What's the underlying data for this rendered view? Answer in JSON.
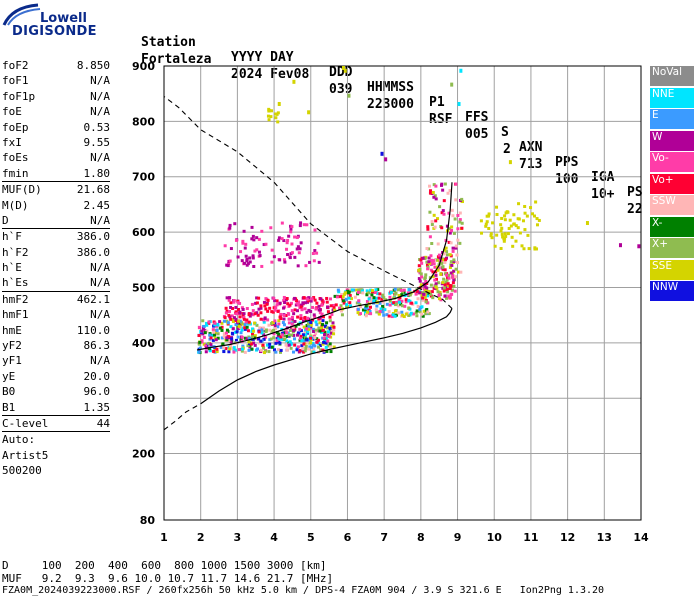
{
  "logo": {
    "top": "Lowell",
    "bottom": "DIGISONDE"
  },
  "header": {
    "station_label": "Station",
    "station": "Fortaleza",
    "date_label": "YYYY DAY",
    "date": "2024 Fev08",
    "ddd_label": "DDD",
    "ddd": "039",
    "time_label": "HHMMSS",
    "time": "223000",
    "p1_label": "P1",
    "p1": "RSF",
    "ffs_label": "FFS",
    "ffs": "005",
    "s_label": "S",
    "s": "2",
    "axn_label": "AXN",
    "axn": "713",
    "pps_label": "PPS",
    "pps": "100",
    "iga_label": "IGA",
    "iga": "10+",
    "ps_label": "PS",
    "ps": "22"
  },
  "params": [
    {
      "name": "foF2",
      "value": "8.850"
    },
    {
      "name": "foF1",
      "value": "N/A"
    },
    {
      "name": "foF1p",
      "value": "N/A"
    },
    {
      "name": "foE",
      "value": "N/A"
    },
    {
      "name": "foEp",
      "value": "0.53"
    },
    {
      "name": "fxI",
      "value": "9.55"
    },
    {
      "name": "foEs",
      "value": "N/A"
    },
    {
      "name": "fmin",
      "value": "1.80",
      "sep": true
    },
    {
      "name": "MUF(D)",
      "value": "21.68"
    },
    {
      "name": "M(D)",
      "value": "2.45"
    },
    {
      "name": "D",
      "value": "N/A",
      "sep": true
    },
    {
      "name": "h`F",
      "value": "386.0"
    },
    {
      "name": "h`F2",
      "value": "386.0"
    },
    {
      "name": "h`E",
      "value": "N/A"
    },
    {
      "name": "h`Es",
      "value": "N/A",
      "sep": true
    },
    {
      "name": "hmF2",
      "value": "462.1"
    },
    {
      "name": "hmF1",
      "value": "N/A"
    },
    {
      "name": "hmE",
      "value": "110.0"
    },
    {
      "name": "yF2",
      "value": "86.3"
    },
    {
      "name": "yF1",
      "value": "N/A"
    },
    {
      "name": "yE",
      "value": "20.0"
    },
    {
      "name": "B0",
      "value": "96.0"
    },
    {
      "name": "B1",
      "value": "1.35",
      "sep": true
    },
    {
      "name": "C-level",
      "value": "44",
      "sep": true
    },
    {
      "name": "Auto:",
      "value": ""
    },
    {
      "name": "Artist5",
      "value": ""
    },
    {
      "name": "500200",
      "value": ""
    }
  ],
  "legend": [
    {
      "label": "NoVal",
      "color": "#8c8c8c",
      "text_color": "#ffffff"
    },
    {
      "label": "NNE",
      "color": "#00e5ff",
      "text_color": "#ffffff"
    },
    {
      "label": "E",
      "color": "#3b9bff",
      "text_color": "#ffffff"
    },
    {
      "label": "W",
      "color": "#b00097",
      "text_color": "#ffffff"
    },
    {
      "label": "Vo-",
      "color": "#ff3ca8",
      "text_color": "#ffffff"
    },
    {
      "label": "Vo+",
      "color": "#ff0033",
      "text_color": "#ffffff"
    },
    {
      "label": "SSW",
      "color": "#ffb6b6",
      "text_color": "#ffffff"
    },
    {
      "label": "X-",
      "color": "#008000",
      "text_color": "#ffffff"
    },
    {
      "label": "X+",
      "color": "#8fbc50",
      "text_color": "#ffffff"
    },
    {
      "label": "SSE",
      "color": "#d4d400",
      "text_color": "#ffffff"
    },
    {
      "label": "NNW",
      "color": "#1010e0",
      "text_color": "#ffffff"
    }
  ],
  "footer": {
    "d_row": "D     100  200  400  600  800 1000 1500 3000 [km]",
    "muf_row": "MUF   9.2  9.3  9.6 10.0 10.7 11.7 14.6 21.7 [MHz]",
    "info_row": "FZA0M_2024039223000.RSF / 260fx256h 50 kHz 5.0 km / DPS-4 FZA0M 904 / 3.9 S 321.6 E   Ion2Png 1.3.20"
  },
  "chart_data": {
    "type": "scatter",
    "xlim": [
      1,
      14
    ],
    "ylim": [
      80,
      900
    ],
    "x_ticks": [
      1,
      2,
      3,
      4,
      5,
      6,
      7,
      8,
      9,
      10,
      11,
      12,
      13,
      14
    ],
    "y_ticks": [
      80,
      200,
      300,
      400,
      500,
      600,
      700,
      800,
      900
    ],
    "x_tick_labels": [
      "1",
      "2",
      "3",
      "4",
      "5",
      "6",
      "7",
      "8",
      "9",
      "10",
      "11",
      "12",
      "13",
      "14"
    ],
    "y_tick_labels": [
      "80",
      "200",
      "300",
      "400",
      "500",
      "600",
      "700",
      "800",
      "900"
    ],
    "grid": true,
    "trace_curve": [
      [
        1.9,
        387
      ],
      [
        2.3,
        392
      ],
      [
        2.8,
        397
      ],
      [
        3.3,
        405
      ],
      [
        3.8,
        414
      ],
      [
        4.3,
        425
      ],
      [
        4.8,
        437
      ],
      [
        5.3,
        448
      ],
      [
        5.8,
        460
      ],
      [
        6.3,
        467
      ],
      [
        6.8,
        473
      ],
      [
        7.3,
        480
      ],
      [
        7.8,
        492
      ],
      [
        8.2,
        510
      ],
      [
        8.5,
        540
      ],
      [
        8.7,
        585
      ],
      [
        8.8,
        640
      ],
      [
        8.85,
        690
      ]
    ],
    "profile_curve": [
      [
        2.0,
        290
      ],
      [
        2.5,
        313
      ],
      [
        3.0,
        333
      ],
      [
        3.5,
        348
      ],
      [
        4.0,
        360
      ],
      [
        4.5,
        370
      ],
      [
        5.0,
        380
      ],
      [
        5.5,
        388
      ],
      [
        6.0,
        395
      ],
      [
        6.5,
        402
      ],
      [
        7.0,
        409
      ],
      [
        7.5,
        417
      ],
      [
        8.0,
        427
      ],
      [
        8.4,
        437
      ],
      [
        8.7,
        447
      ],
      [
        8.8,
        455
      ],
      [
        8.85,
        462
      ]
    ],
    "extrapolation_bottom": [
      [
        1.0,
        243
      ],
      [
        1.3,
        258
      ],
      [
        1.6,
        275
      ],
      [
        2.0,
        290
      ]
    ],
    "extrapolation_top": [
      [
        8.85,
        462
      ],
      [
        8.6,
        478
      ],
      [
        8.0,
        497
      ],
      [
        7.0,
        530
      ],
      [
        6.0,
        565
      ],
      [
        5.0,
        615
      ],
      [
        4.0,
        690
      ],
      [
        3.0,
        745
      ],
      [
        2.0,
        785
      ],
      [
        1.4,
        825
      ],
      [
        1.0,
        845
      ]
    ],
    "echo_clusters": [
      {
        "x": [
          1.9,
          5.6
        ],
        "y": [
          385,
          445
        ],
        "n": 520,
        "colors": [
          "#00e5ff",
          "#3b9bff",
          "#ff0033",
          "#ff3ca8",
          "#008000",
          "#8fbc50",
          "#ffb6b6",
          "#d4d400",
          "#b00097",
          "#1010e0"
        ]
      },
      {
        "x": [
          2.6,
          5.6
        ],
        "y": [
          445,
          485
        ],
        "n": 200,
        "colors": [
          "#ff0033",
          "#ff3ca8",
          "#b00097"
        ]
      },
      {
        "x": [
          5.6,
          8.2
        ],
        "y": [
          450,
          500
        ],
        "n": 260,
        "colors": [
          "#00e5ff",
          "#3b9bff",
          "#ff0033",
          "#ffb6b6",
          "#8fbc50",
          "#d4d400",
          "#008000",
          "#ff3ca8"
        ]
      },
      {
        "x": [
          7.9,
          8.9
        ],
        "y": [
          480,
          560
        ],
        "n": 150,
        "colors": [
          "#ff0033",
          "#ff3ca8",
          "#b00097",
          "#d4d400",
          "#8fbc50"
        ]
      },
      {
        "x": [
          8.1,
          9.1
        ],
        "y": [
          520,
          690
        ],
        "n": 110,
        "colors": [
          "#b00097",
          "#ff3ca8",
          "#ff0033",
          "#ffb6b6",
          "#d4d400",
          "#8fbc50"
        ]
      },
      {
        "x": [
          2.6,
          5.2
        ],
        "y": [
          540,
          620
        ],
        "n": 90,
        "colors": [
          "#b00097",
          "#ff3ca8"
        ]
      },
      {
        "x": [
          9.8,
          11.2
        ],
        "y": [
          570,
          665
        ],
        "n": 45,
        "colors": [
          "#d4d400"
        ]
      },
      {
        "x": [
          9.6,
          10.8
        ],
        "y": [
          590,
          640
        ],
        "n": 25,
        "colors": [
          "#d4d400"
        ]
      },
      {
        "x": [
          3.8,
          4.1
        ],
        "y": [
          800,
          825
        ],
        "n": 12,
        "colors": [
          "#d4d400"
        ]
      },
      {
        "x": [
          3.1,
          3.4
        ],
        "y": [
          545,
          560
        ],
        "n": 8,
        "colors": [
          "#b00097"
        ]
      }
    ],
    "extra_points": [
      {
        "x": 5.9,
        "y": 895,
        "c": "#d4d400"
      },
      {
        "x": 5.85,
        "y": 900,
        "c": "#d4d400"
      },
      {
        "x": 8.8,
        "y": 870,
        "c": "#8fbc50"
      },
      {
        "x": 9.0,
        "y": 835,
        "c": "#00e5ff"
      },
      {
        "x": 9.05,
        "y": 895,
        "c": "#00e5ff"
      },
      {
        "x": 4.5,
        "y": 875,
        "c": "#d4d400"
      },
      {
        "x": 6.0,
        "y": 850,
        "c": "#8fbc50"
      },
      {
        "x": 4.1,
        "y": 835,
        "c": "#d4d400"
      },
      {
        "x": 6.9,
        "y": 745,
        "c": "#1010e0"
      },
      {
        "x": 7.0,
        "y": 735,
        "c": "#b00097"
      },
      {
        "x": 10.4,
        "y": 730,
        "c": "#d4d400"
      },
      {
        "x": 13.4,
        "y": 580,
        "c": "#b00097"
      },
      {
        "x": 13.9,
        "y": 578,
        "c": "#b00097"
      },
      {
        "x": 12.5,
        "y": 620,
        "c": "#d4d400"
      },
      {
        "x": 4.9,
        "y": 820,
        "c": "#d4d400"
      }
    ]
  }
}
